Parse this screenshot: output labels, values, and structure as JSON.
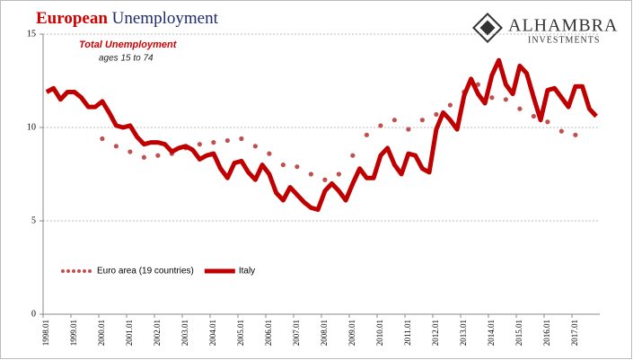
{
  "chart_data": {
    "type": "line",
    "title_parts": [
      "European",
      "Unemployment"
    ],
    "annotations": [
      "Total Unemployment",
      "ages 15 to 74"
    ],
    "logo": [
      "ALHAMBRA",
      "INVESTMENTS"
    ],
    "categories": [
      "1998.01",
      null,
      null,
      null,
      "1999.01",
      null,
      null,
      null,
      "2000.01",
      null,
      null,
      null,
      "2001.01",
      null,
      null,
      null,
      "2002.01",
      null,
      null,
      null,
      "2003.01",
      null,
      null,
      null,
      "2004.01",
      null,
      null,
      null,
      "2005.01",
      null,
      null,
      null,
      "2006.01",
      null,
      null,
      null,
      "2007.01",
      null,
      null,
      null,
      "2008.01",
      null,
      null,
      null,
      "2009.01",
      null,
      null,
      null,
      "2010.01",
      null,
      null,
      null,
      "2011.01",
      null,
      null,
      null,
      "2012.01",
      null,
      null,
      null,
      "2013.01",
      null,
      null,
      null,
      "2014.01",
      null,
      null,
      null,
      "2015.01",
      null,
      null,
      null,
      "2016.01",
      null,
      null,
      null,
      "2017.01",
      null,
      null,
      null
    ],
    "series": [
      {
        "name": "Euro area (19 countries)",
        "color": "#c0504d",
        "style": "dots",
        "values": [
          null,
          null,
          null,
          null,
          null,
          null,
          null,
          null,
          9.4,
          null,
          9.0,
          null,
          8.7,
          null,
          8.4,
          null,
          8.5,
          null,
          8.6,
          null,
          8.9,
          null,
          9.1,
          null,
          9.2,
          null,
          9.3,
          null,
          9.4,
          null,
          9.0,
          null,
          8.6,
          null,
          8.0,
          null,
          7.9,
          null,
          7.5,
          null,
          7.2,
          null,
          7.5,
          null,
          8.5,
          null,
          9.6,
          null,
          10.1,
          null,
          10.4,
          null,
          9.9,
          null,
          10.4,
          null,
          10.7,
          null,
          11.2,
          null,
          11.9,
          null,
          12.3,
          null,
          11.6,
          null,
          11.5,
          null,
          11.0,
          null,
          10.6,
          null,
          10.3,
          null,
          9.8,
          null,
          9.6,
          null,
          null,
          null
        ]
      },
      {
        "name": "Italy",
        "color": "#c00000",
        "style": "line",
        "values": [
          11.9,
          12.1,
          11.5,
          11.9,
          11.9,
          11.6,
          11.1,
          11.1,
          11.4,
          10.8,
          10.1,
          10.0,
          10.1,
          9.5,
          9.1,
          9.2,
          9.2,
          9.1,
          8.7,
          8.9,
          9.0,
          8.8,
          8.3,
          8.5,
          8.6,
          7.8,
          7.3,
          8.1,
          8.2,
          7.6,
          7.2,
          8.0,
          7.5,
          6.5,
          6.1,
          6.8,
          6.4,
          6.0,
          5.7,
          5.6,
          6.6,
          7.0,
          6.6,
          6.1,
          7.0,
          7.8,
          7.3,
          7.3,
          8.5,
          8.9,
          8.0,
          7.5,
          8.6,
          8.5,
          7.8,
          7.6,
          9.9,
          10.8,
          10.4,
          9.9,
          11.7,
          12.6,
          11.8,
          11.3,
          12.8,
          13.6,
          12.3,
          11.8,
          13.3,
          12.9,
          11.6,
          10.4,
          12.0,
          12.1,
          11.6,
          11.1,
          12.2,
          12.2,
          11.0,
          10.6
        ]
      }
    ],
    "ylim": [
      0,
      15
    ],
    "yticks": [
      0,
      5,
      10,
      15
    ],
    "grid": true
  }
}
